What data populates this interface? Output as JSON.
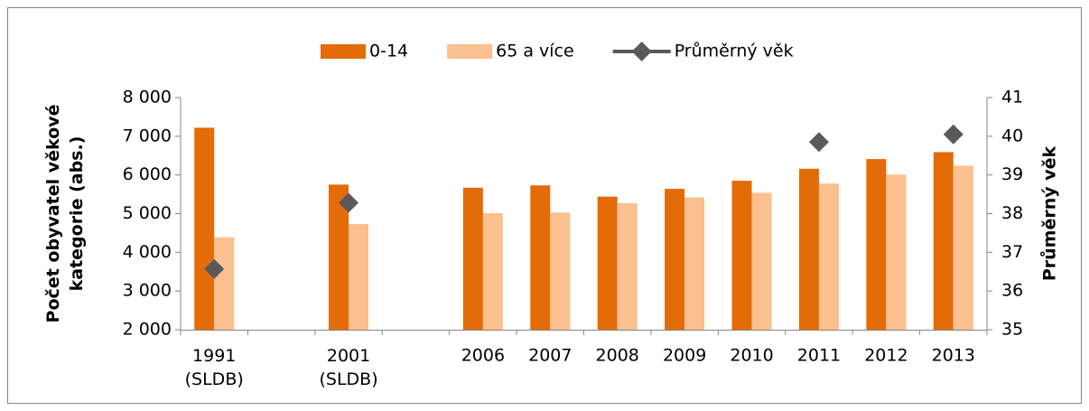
{
  "chart_data": {
    "type": "bar",
    "categories": [
      "1991\n(SLDB)",
      null,
      "2001\n(SLDB)",
      null,
      "2006",
      "2007",
      "2008",
      "2009",
      "2010",
      "2011",
      "2012",
      "2013"
    ],
    "series": [
      {
        "name": "0-14",
        "color": "#e36c09",
        "values": [
          7220,
          null,
          5750,
          null,
          5670,
          5730,
          5440,
          5640,
          5850,
          6160,
          6410,
          6590
        ]
      },
      {
        "name": "65 a více",
        "color": "#fac090",
        "values": [
          4390,
          null,
          4730,
          null,
          5010,
          5030,
          5270,
          5420,
          5540,
          5780,
          6010,
          6240
        ]
      },
      {
        "name": "Průměrný věk",
        "color": "#595959",
        "type": "line",
        "axis": "y2",
        "values": [
          36.57,
          null,
          38.28,
          null,
          null,
          null,
          null,
          null,
          null,
          39.85,
          null,
          40.05
        ]
      }
    ],
    "y_label": "Počet obyvatel věkové\nkategorie (abs.)",
    "y2_label": "Průměrný věk",
    "ylim": [
      2000,
      8000
    ],
    "yticks": [
      {
        "value": 2000,
        "label": "2 000"
      },
      {
        "value": 3000,
        "label": "3 000"
      },
      {
        "value": 4000,
        "label": "4 000"
      },
      {
        "value": 5000,
        "label": "5 000"
      },
      {
        "value": 6000,
        "label": "6 000"
      },
      {
        "value": 7000,
        "label": "7 000"
      },
      {
        "value": 8000,
        "label": "8 000"
      }
    ],
    "y2lim": [
      35,
      41
    ],
    "y2ticks": [
      35,
      36,
      37,
      38,
      39,
      40,
      41
    ],
    "grid": false,
    "legend": "top"
  }
}
